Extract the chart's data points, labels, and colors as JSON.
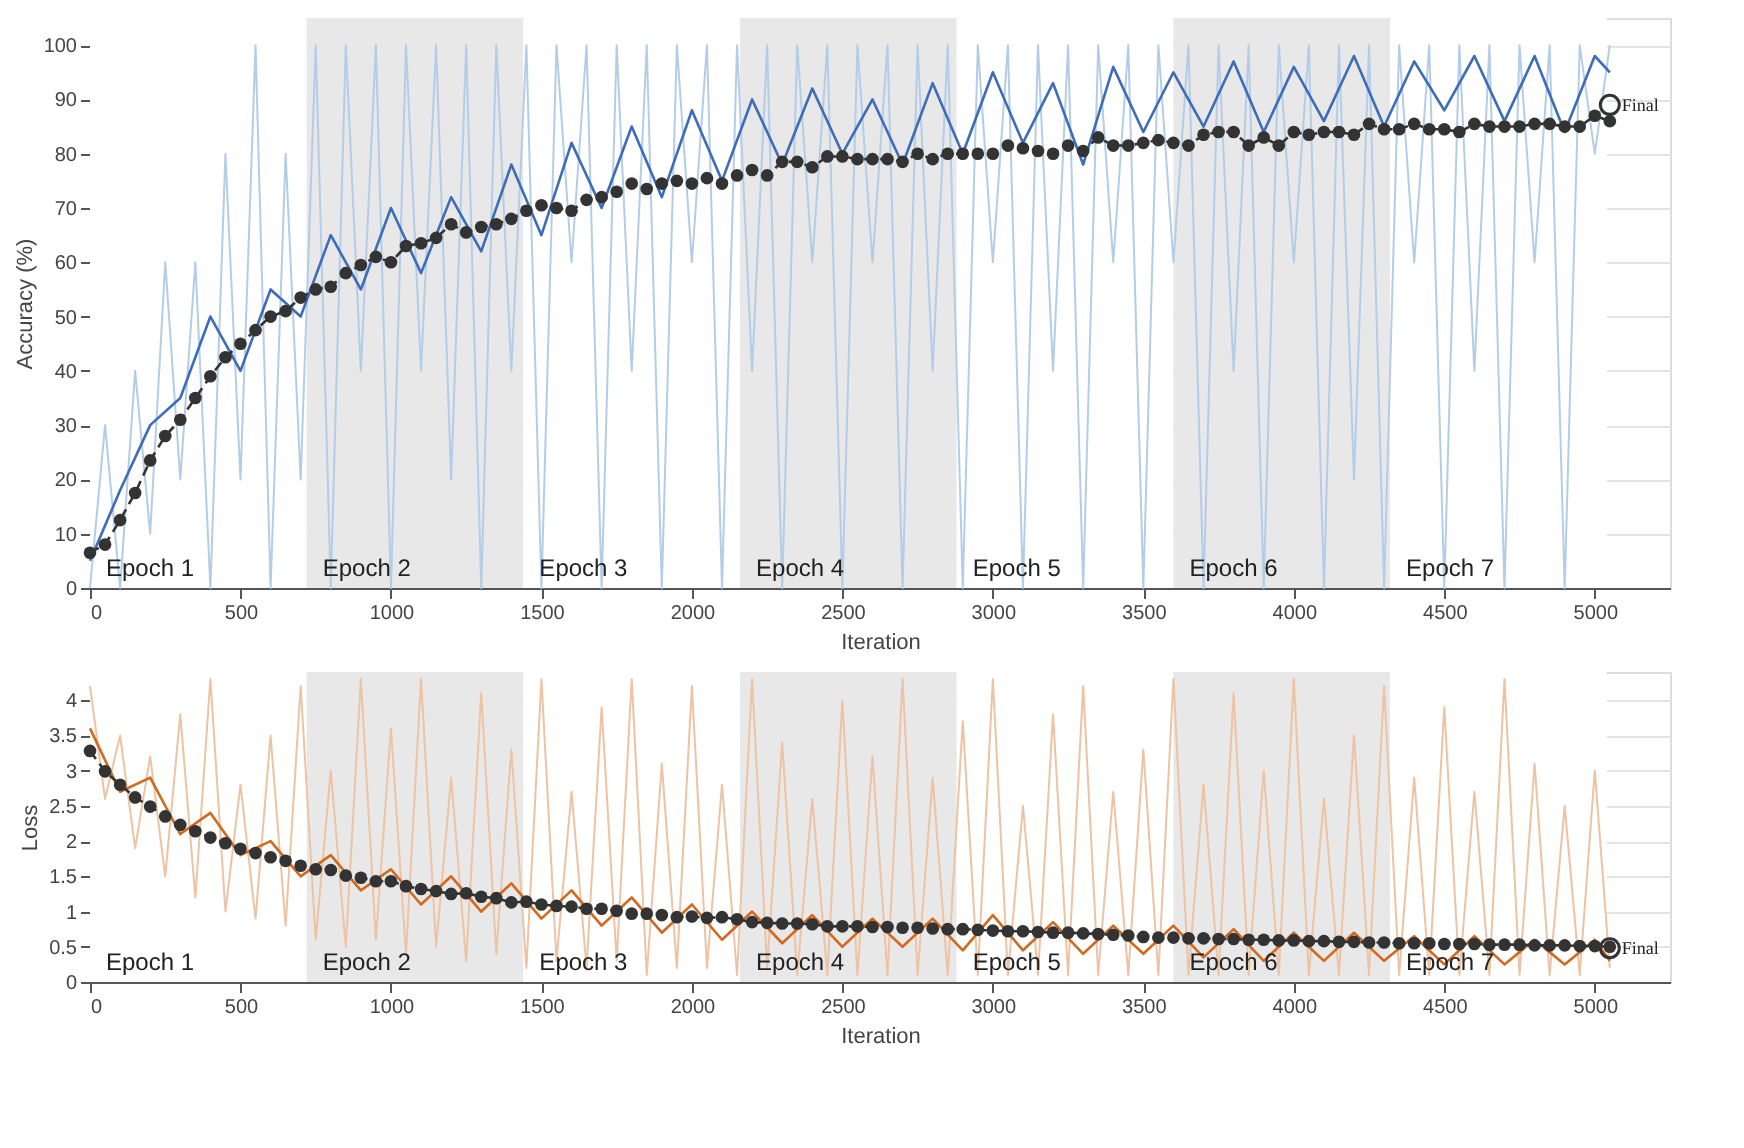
{
  "chart_data": [
    {
      "type": "line",
      "xlabel": "Iteration",
      "ylabel": "Accuracy (%)",
      "xlim": [
        0,
        5250
      ],
      "ylim": [
        0,
        105
      ],
      "xticks": [
        0,
        500,
        1000,
        1500,
        2000,
        2500,
        3000,
        3500,
        4000,
        4500,
        5000
      ],
      "yticks": [
        0,
        10,
        20,
        30,
        40,
        50,
        60,
        70,
        80,
        90,
        100
      ],
      "grid": true,
      "x": [
        0,
        50,
        100,
        150,
        200,
        250,
        300,
        350,
        400,
        450,
        500,
        550,
        600,
        650,
        700,
        750,
        800,
        850,
        900,
        950,
        1000,
        1050,
        1100,
        1150,
        1200,
        1250,
        1300,
        1350,
        1400,
        1450,
        1500,
        1550,
        1600,
        1650,
        1700,
        1750,
        1800,
        1850,
        1900,
        1950,
        2000,
        2050,
        2100,
        2150,
        2200,
        2250,
        2300,
        2350,
        2400,
        2450,
        2500,
        2550,
        2600,
        2650,
        2700,
        2750,
        2800,
        2850,
        2900,
        2950,
        3000,
        3050,
        3100,
        3150,
        3200,
        3250,
        3300,
        3350,
        3400,
        3450,
        3500,
        3550,
        3600,
        3650,
        3700,
        3750,
        3800,
        3850,
        3900,
        3950,
        4000,
        4050,
        4100,
        4150,
        4200,
        4250,
        4300,
        4350,
        4400,
        4450,
        4500,
        4550,
        4600,
        4650,
        4700,
        4750,
        4800,
        4850,
        4900,
        4950,
        5000,
        5050
      ],
      "bands": [
        {
          "axis": "x",
          "from": 0,
          "to": 720,
          "label": "Epoch 1",
          "color": "#ffffff"
        },
        {
          "axis": "x",
          "from": 720,
          "to": 1440,
          "label": "Epoch 2",
          "color": "#e8e8e8"
        },
        {
          "axis": "x",
          "from": 1440,
          "to": 2160,
          "label": "Epoch 3",
          "color": "#ffffff"
        },
        {
          "axis": "x",
          "from": 2160,
          "to": 2880,
          "label": "Epoch 4",
          "color": "#e8e8e8"
        },
        {
          "axis": "x",
          "from": 2880,
          "to": 3600,
          "label": "Epoch 5",
          "color": "#ffffff"
        },
        {
          "axis": "x",
          "from": 3600,
          "to": 4320,
          "label": "Epoch 6",
          "color": "#e8e8e8"
        },
        {
          "axis": "x",
          "from": 4320,
          "to": 5040,
          "label": "Epoch 7",
          "color": "#ffffff"
        }
      ],
      "series": [
        {
          "type": "line",
          "color": "#b3cde8",
          "marker": "none",
          "line_style": "solid",
          "values": [
            0,
            30,
            0,
            40,
            10,
            60,
            20,
            60,
            0,
            80,
            20,
            100,
            0,
            80,
            20,
            100,
            0,
            100,
            40,
            100,
            0,
            100,
            40,
            100,
            20,
            100,
            0,
            100,
            40,
            100,
            0,
            100,
            60,
            100,
            0,
            100,
            40,
            100,
            0,
            100,
            60,
            100,
            0,
            100,
            40,
            100,
            0,
            100,
            60,
            100,
            0,
            100,
            60,
            100,
            0,
            100,
            40,
            100,
            0,
            100,
            60,
            100,
            0,
            100,
            40,
            100,
            0,
            100,
            60,
            100,
            0,
            100,
            60,
            100,
            0,
            100,
            40,
            100,
            0,
            100,
            60,
            100,
            0,
            100,
            20,
            100,
            0,
            100,
            60,
            100,
            0,
            100,
            40,
            100,
            0,
            100,
            60,
            100,
            0,
            100,
            80,
            100
          ]
        },
        {
          "type": "line",
          "color": "#3d6cb9",
          "marker": "none",
          "line_style": "solid",
          "x": [
            0,
            100,
            200,
            300,
            400,
            500,
            600,
            700,
            800,
            900,
            1000,
            1100,
            1200,
            1300,
            1400,
            1500,
            1600,
            1700,
            1800,
            1900,
            2000,
            2100,
            2200,
            2300,
            2400,
            2500,
            2600,
            2700,
            2800,
            2900,
            3000,
            3100,
            3200,
            3300,
            3400,
            3500,
            3600,
            3700,
            3800,
            3900,
            4000,
            4100,
            4200,
            4300,
            4400,
            4500,
            4600,
            4700,
            4800,
            4900,
            5000,
            5050
          ],
          "values": [
            5,
            18,
            30,
            35,
            50,
            40,
            55,
            50,
            65,
            55,
            70,
            58,
            72,
            62,
            78,
            65,
            82,
            70,
            85,
            72,
            88,
            75,
            90,
            78,
            92,
            80,
            90,
            78,
            93,
            80,
            95,
            82,
            93,
            78,
            96,
            84,
            95,
            85,
            97,
            84,
            96,
            86,
            98,
            85,
            97,
            88,
            98,
            86,
            98,
            84,
            98,
            95
          ]
        },
        {
          "type": "line",
          "color": "#333333",
          "marker": "circle",
          "line_style": "dashed",
          "values": [
            6.5,
            8,
            12.5,
            17.5,
            23.5,
            28,
            31,
            35,
            39,
            42.5,
            45,
            47.5,
            50,
            51,
            53.5,
            55,
            55.5,
            58,
            59.5,
            61,
            60,
            63,
            63.5,
            64.5,
            67,
            65.5,
            66.5,
            67,
            68,
            69.5,
            70.5,
            70,
            69.5,
            71.5,
            72,
            73,
            74.5,
            73.5,
            74.5,
            75,
            74.5,
            75.5,
            74.5,
            76,
            77,
            76,
            78.5,
            78.5,
            77.5,
            79.5,
            79.5,
            79,
            79,
            79,
            78.5,
            80,
            79,
            80,
            80,
            80,
            80,
            81.5,
            81,
            80.5,
            80,
            81.5,
            80.5,
            83,
            81.5,
            81.5,
            82,
            82.5,
            82,
            81.5,
            83.5,
            84,
            84,
            81.5,
            83,
            81.5,
            84,
            83.5,
            84,
            84,
            83.5,
            85.5,
            84.5,
            84.5,
            85.5,
            84.5,
            84.5,
            84,
            85.5,
            85,
            85,
            85,
            85.5,
            85.5,
            85,
            85,
            87,
            86
          ]
        },
        {
          "type": "scatter",
          "color": "#333333",
          "marker": "circle",
          "x": [
            5050
          ],
          "values": [
            89
          ]
        }
      ],
      "annotations": [
        {
          "text": "Final",
          "x": 5050,
          "y": 89
        }
      ]
    },
    {
      "type": "line",
      "xlabel": "Iteration",
      "ylabel": "Loss",
      "xlim": [
        0,
        5250
      ],
      "ylim": [
        0,
        4.4
      ],
      "xticks": [
        0,
        500,
        1000,
        1500,
        2000,
        2500,
        3000,
        3500,
        4000,
        4500,
        5000
      ],
      "yticks": [
        0,
        0.5,
        1,
        1.5,
        2,
        2.5,
        3,
        3.5,
        4
      ],
      "grid": true,
      "x": [
        0,
        50,
        100,
        150,
        200,
        250,
        300,
        350,
        400,
        450,
        500,
        550,
        600,
        650,
        700,
        750,
        800,
        850,
        900,
        950,
        1000,
        1050,
        1100,
        1150,
        1200,
        1250,
        1300,
        1350,
        1400,
        1450,
        1500,
        1550,
        1600,
        1650,
        1700,
        1750,
        1800,
        1850,
        1900,
        1950,
        2000,
        2050,
        2100,
        2150,
        2200,
        2250,
        2300,
        2350,
        2400,
        2450,
        2500,
        2550,
        2600,
        2650,
        2700,
        2750,
        2800,
        2850,
        2900,
        2950,
        3000,
        3050,
        3100,
        3150,
        3200,
        3250,
        3300,
        3350,
        3400,
        3450,
        3500,
        3550,
        3600,
        3650,
        3700,
        3750,
        3800,
        3850,
        3900,
        3950,
        4000,
        4050,
        4100,
        4150,
        4200,
        4250,
        4300,
        4350,
        4400,
        4450,
        4500,
        4550,
        4600,
        4650,
        4700,
        4750,
        4800,
        4850,
        4900,
        4950,
        5000,
        5050
      ],
      "bands": [
        {
          "axis": "x",
          "from": 0,
          "to": 720,
          "label": "Epoch 1",
          "color": "#ffffff"
        },
        {
          "axis": "x",
          "from": 720,
          "to": 1440,
          "label": "Epoch 2",
          "color": "#e8e8e8"
        },
        {
          "axis": "x",
          "from": 1440,
          "to": 2160,
          "label": "Epoch 3",
          "color": "#ffffff"
        },
        {
          "axis": "x",
          "from": 2160,
          "to": 2880,
          "label": "Epoch 4",
          "color": "#e8e8e8"
        },
        {
          "axis": "x",
          "from": 2880,
          "to": 3600,
          "label": "Epoch 5",
          "color": "#ffffff"
        },
        {
          "axis": "x",
          "from": 3600,
          "to": 4320,
          "label": "Epoch 6",
          "color": "#e8e8e8"
        },
        {
          "axis": "x",
          "from": 4320,
          "to": 5040,
          "label": "Epoch 7",
          "color": "#ffffff"
        }
      ],
      "series": [
        {
          "type": "line",
          "color": "#eec3a3",
          "marker": "none",
          "line_style": "solid",
          "values": [
            4.2,
            2.6,
            3.5,
            1.9,
            3.2,
            1.5,
            3.8,
            1.2,
            4.3,
            1.0,
            2.8,
            0.9,
            3.5,
            0.8,
            4.2,
            0.6,
            3.0,
            0.5,
            4.3,
            0.6,
            3.6,
            0.4,
            4.3,
            0.5,
            2.9,
            0.3,
            4.1,
            0.4,
            3.3,
            0.2,
            4.3,
            0.3,
            2.7,
            0.2,
            3.9,
            0.3,
            4.3,
            0.1,
            3.1,
            0.2,
            4.2,
            0.2,
            2.8,
            0.1,
            4.3,
            0.2,
            3.4,
            0.1,
            2.6,
            0.1,
            4.0,
            0.1,
            3.2,
            0.1,
            4.3,
            0.1,
            2.9,
            0.1,
            3.7,
            0.1,
            4.3,
            0.1,
            2.5,
            0.1,
            3.8,
            0.1,
            4.2,
            0.1,
            2.7,
            0.1,
            3.3,
            0.1,
            4.3,
            0.1,
            2.8,
            0.1,
            4.1,
            0.1,
            3.0,
            0.1,
            4.3,
            0.1,
            2.6,
            0.1,
            3.5,
            0.1,
            4.2,
            0.1,
            2.9,
            0.1,
            3.9,
            0.1,
            2.7,
            0.1,
            4.3,
            0.1,
            3.1,
            0.1,
            2.5,
            0.1,
            3.0,
            0.2
          ]
        },
        {
          "type": "line",
          "color": "#d2691e",
          "marker": "none",
          "line_style": "solid",
          "x": [
            0,
            100,
            200,
            300,
            400,
            500,
            600,
            700,
            800,
            900,
            1000,
            1100,
            1200,
            1300,
            1400,
            1500,
            1600,
            1700,
            1800,
            1900,
            2000,
            2100,
            2200,
            2300,
            2400,
            2500,
            2600,
            2700,
            2800,
            2900,
            3000,
            3100,
            3200,
            3300,
            3400,
            3500,
            3600,
            3700,
            3800,
            3900,
            4000,
            4100,
            4200,
            4300,
            4400,
            4500,
            4600,
            4700,
            4800,
            4900,
            5000,
            5050
          ],
          "values": [
            3.6,
            2.7,
            2.9,
            2.1,
            2.4,
            1.8,
            2.0,
            1.5,
            1.8,
            1.3,
            1.6,
            1.1,
            1.5,
            1.0,
            1.4,
            0.9,
            1.3,
            0.8,
            1.2,
            0.7,
            1.1,
            0.6,
            1.0,
            0.55,
            0.95,
            0.5,
            0.9,
            0.5,
            0.9,
            0.45,
            0.95,
            0.45,
            0.85,
            0.4,
            0.8,
            0.4,
            0.8,
            0.35,
            0.75,
            0.3,
            0.7,
            0.3,
            0.7,
            0.3,
            0.65,
            0.25,
            0.65,
            0.25,
            0.6,
            0.25,
            0.6,
            0.3
          ]
        },
        {
          "type": "line",
          "color": "#333333",
          "marker": "circle",
          "line_style": "dashed",
          "values": [
            3.28,
            2.99,
            2.8,
            2.62,
            2.49,
            2.35,
            2.23,
            2.14,
            2.05,
            1.97,
            1.89,
            1.83,
            1.77,
            1.72,
            1.65,
            1.6,
            1.59,
            1.51,
            1.48,
            1.43,
            1.43,
            1.36,
            1.32,
            1.29,
            1.25,
            1.26,
            1.21,
            1.19,
            1.13,
            1.14,
            1.1,
            1.08,
            1.07,
            1.04,
            1.04,
            1.01,
            0.97,
            0.97,
            0.95,
            0.92,
            0.93,
            0.91,
            0.92,
            0.89,
            0.85,
            0.84,
            0.83,
            0.83,
            0.82,
            0.79,
            0.79,
            0.79,
            0.78,
            0.78,
            0.77,
            0.77,
            0.76,
            0.75,
            0.75,
            0.74,
            0.73,
            0.72,
            0.72,
            0.71,
            0.7,
            0.7,
            0.69,
            0.68,
            0.67,
            0.66,
            0.64,
            0.63,
            0.63,
            0.62,
            0.62,
            0.61,
            0.61,
            0.6,
            0.6,
            0.59,
            0.59,
            0.58,
            0.58,
            0.57,
            0.57,
            0.56,
            0.56,
            0.55,
            0.55,
            0.55,
            0.54,
            0.54,
            0.54,
            0.53,
            0.53,
            0.53,
            0.52,
            0.52,
            0.52,
            0.51,
            0.51,
            0.5
          ]
        },
        {
          "type": "scatter",
          "color": "#333333",
          "marker": "circle",
          "x": [
            5050
          ],
          "values": [
            0.48
          ]
        }
      ],
      "annotations": [
        {
          "text": "Final",
          "x": 5050,
          "y": 0.48
        }
      ]
    }
  ]
}
